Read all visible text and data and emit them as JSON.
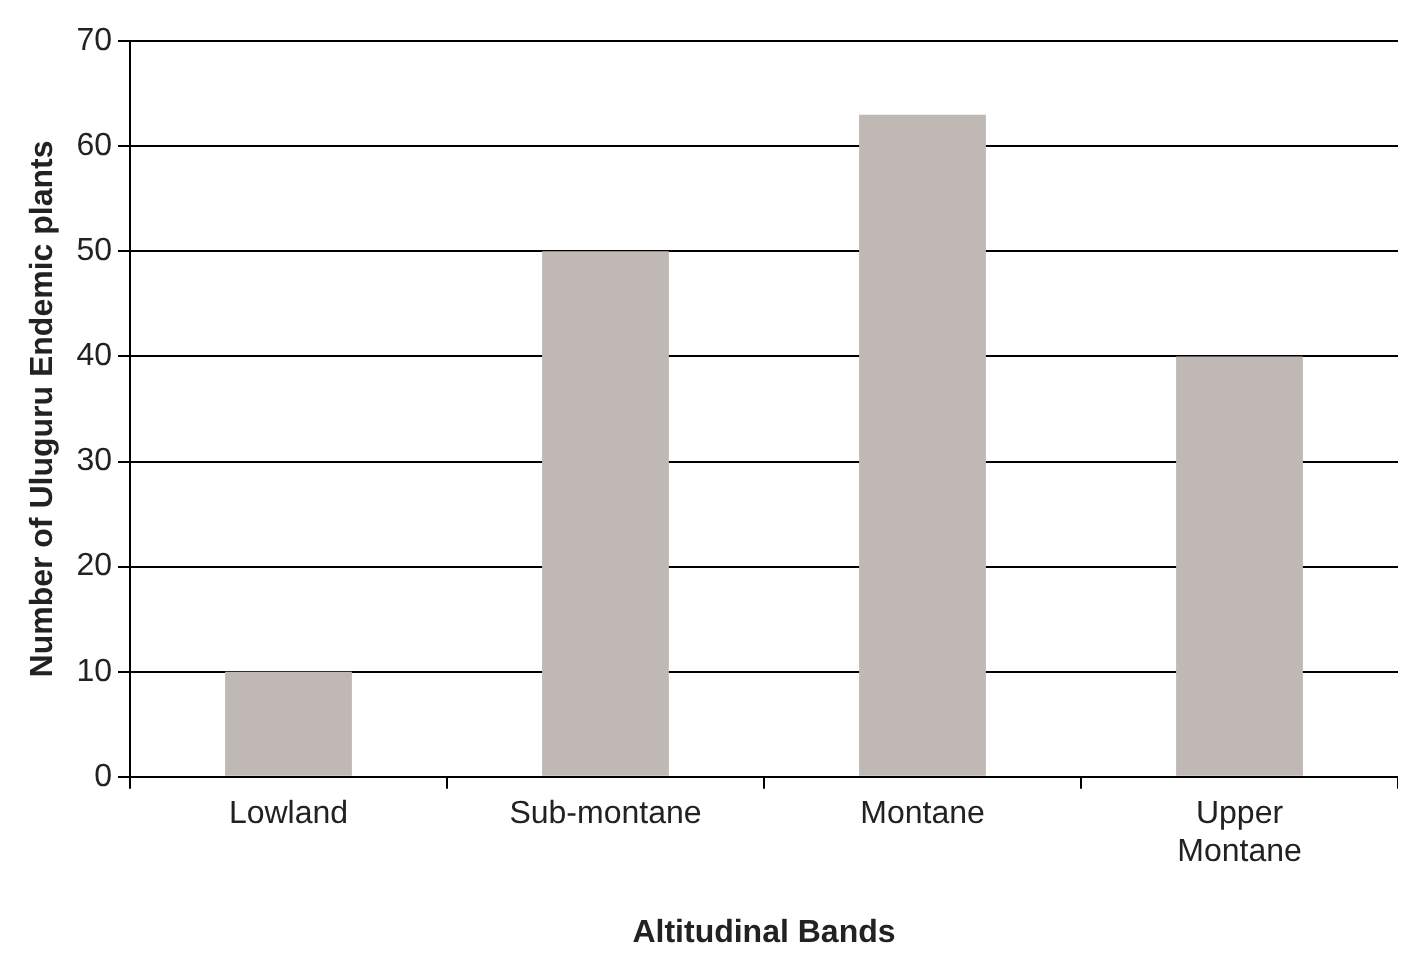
{
  "chart_data": {
    "type": "bar",
    "xlabel": "Altitudinal Bands",
    "ylabel": "Number of Uluguru Endemic plants",
    "categories": [
      "Lowland",
      "Sub-montane",
      "Montane",
      "Upper Montane"
    ],
    "values": [
      10,
      50,
      63,
      40
    ],
    "color": "#c0b8b4",
    "ylim": [
      0,
      70
    ],
    "yticks": [
      0,
      10,
      20,
      30,
      40,
      50,
      60,
      70
    ],
    "grid": "y",
    "legend": false
  }
}
